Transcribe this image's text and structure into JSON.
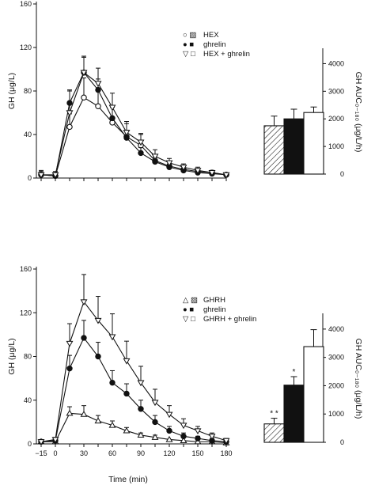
{
  "colors": {
    "ink": "#111111",
    "paper": "#ffffff"
  },
  "chart_data": [
    {
      "type": "line",
      "panel": "top",
      "xlabel": "",
      "ylabel": "GH (μg/L)",
      "xlim": [
        -20,
        180
      ],
      "ylim": [
        0,
        160
      ],
      "y_ticks": [
        0,
        40,
        80,
        120,
        160
      ],
      "x": [
        -15,
        0,
        15,
        30,
        45,
        60,
        75,
        90,
        105,
        120,
        135,
        150,
        165,
        180
      ],
      "series": [
        {
          "name": "HEX",
          "marker": "open-circle",
          "values": [
            3,
            2,
            47,
            74,
            66,
            51,
            38,
            30,
            16,
            11,
            8,
            6,
            5,
            3
          ],
          "errors": [
            4,
            3,
            12,
            18,
            14,
            14,
            12,
            10,
            5,
            4,
            3,
            2,
            2,
            1
          ]
        },
        {
          "name": "ghrelin",
          "marker": "filled-circle",
          "values": [
            3,
            2,
            69,
            97,
            81,
            55,
            37,
            23,
            15,
            10,
            7,
            5,
            4,
            3
          ],
          "errors": [
            2,
            2,
            12,
            14,
            10,
            10,
            7,
            5,
            4,
            3,
            2,
            2,
            1,
            1
          ]
        },
        {
          "name": "HEX + ghrelin",
          "marker": "open-triangle-down",
          "values": [
            3,
            3,
            60,
            97,
            87,
            65,
            42,
            33,
            20,
            14,
            10,
            7,
            5,
            3
          ],
          "errors": [
            3,
            3,
            20,
            15,
            14,
            13,
            10,
            8,
            6,
            4,
            3,
            3,
            2,
            1
          ]
        }
      ],
      "inset_bar": {
        "ylabel": "GH AUC₀₋₁₈₀ (μg/L/h)",
        "ylim": [
          0,
          4500
        ],
        "y_ticks": [
          0,
          1000,
          2000,
          3000,
          4000
        ],
        "bars": [
          {
            "name": "HEX",
            "fill": "hatched",
            "value": 1750,
            "error": 350,
            "sig": ""
          },
          {
            "name": "ghrelin",
            "fill": "black",
            "value": 2000,
            "error": 350,
            "sig": ""
          },
          {
            "name": "HEX + ghrelin",
            "fill": "white",
            "value": 2230,
            "error": 200,
            "sig": ""
          }
        ]
      },
      "legend": {
        "placement": "upper-right",
        "items": [
          {
            "symbols": "○ ▨",
            "label": "HEX"
          },
          {
            "symbols": "● ■",
            "label": "ghrelin"
          },
          {
            "symbols": "▽ □",
            "label": "HEX + ghrelin"
          }
        ]
      }
    },
    {
      "type": "line",
      "panel": "bottom",
      "xlabel": "Time (min)",
      "ylabel": "GH (μg/L)",
      "xlim": [
        -20,
        180
      ],
      "ylim": [
        0,
        160
      ],
      "y_ticks": [
        0,
        40,
        80,
        120,
        160
      ],
      "x_ticks": [
        -15,
        0,
        30,
        60,
        90,
        120,
        150,
        180
      ],
      "x": [
        -15,
        0,
        15,
        30,
        45,
        60,
        75,
        90,
        105,
        120,
        135,
        150,
        165,
        180
      ],
      "series": [
        {
          "name": "GHRH",
          "marker": "open-triangle-up",
          "values": [
            2,
            2,
            28,
            27,
            21,
            17,
            12,
            8,
            6,
            4,
            3,
            2,
            2,
            1
          ],
          "errors": [
            2,
            1,
            6,
            8,
            5,
            4,
            3,
            2,
            2,
            1,
            1,
            1,
            1,
            1
          ]
        },
        {
          "name": "ghrelin",
          "marker": "filled-circle",
          "values": [
            2,
            3,
            69,
            97,
            80,
            56,
            46,
            32,
            20,
            12,
            7,
            5,
            3,
            2
          ],
          "errors": [
            1,
            1,
            12,
            16,
            13,
            11,
            9,
            8,
            6,
            4,
            3,
            2,
            2,
            1
          ]
        },
        {
          "name": "GHRH + ghrelin",
          "marker": "open-triangle-down",
          "values": [
            2,
            4,
            92,
            130,
            113,
            98,
            76,
            56,
            38,
            27,
            17,
            12,
            7,
            3
          ],
          "errors": [
            1,
            2,
            18,
            25,
            22,
            21,
            18,
            15,
            12,
            8,
            6,
            4,
            3,
            2
          ]
        }
      ],
      "inset_bar": {
        "ylabel": "GH AUC₀₋₁₈₀ (μg/L/h)",
        "ylim": [
          0,
          4500
        ],
        "y_ticks": [
          0,
          1000,
          2000,
          3000,
          4000
        ],
        "bars": [
          {
            "name": "GHRH",
            "fill": "hatched",
            "value": 650,
            "error": 200,
            "sig": "* *"
          },
          {
            "name": "ghrelin",
            "fill": "black",
            "value": 2020,
            "error": 300,
            "sig": "*"
          },
          {
            "name": "GHRH + ghrelin",
            "fill": "white",
            "value": 3380,
            "error": 600,
            "sig": ""
          }
        ]
      },
      "legend": {
        "placement": "upper-right",
        "items": [
          {
            "symbols": "△ ▨",
            "label": "GHRH"
          },
          {
            "symbols": "● ■",
            "label": "ghrelin"
          },
          {
            "symbols": "▽ □",
            "label": "GHRH + ghrelin"
          }
        ]
      }
    }
  ]
}
